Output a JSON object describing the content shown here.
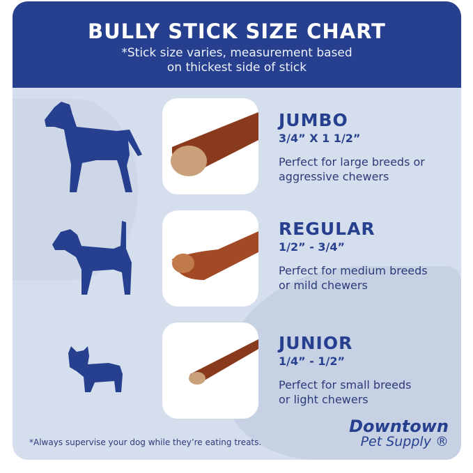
{
  "header": {
    "title": "BULLY STICK SIZE CHART",
    "subtitle_line1": "*Stick size varies, measurement based",
    "subtitle_line2": "on thickest side of stick"
  },
  "sizes": [
    {
      "name": "JUMBO",
      "dimension": "3/4” X 1 1/2”",
      "desc_line1": "Perfect for large breeds or",
      "desc_line2": "aggressive chewers",
      "dog_icon": "large-dog-silhouette"
    },
    {
      "name": "REGULAR",
      "dimension": "1/2” - 3/4”",
      "desc_line1": "Perfect for medium breeds",
      "desc_line2": "or mild chewers",
      "dog_icon": "medium-dog-silhouette"
    },
    {
      "name": "JUNIOR",
      "dimension": "1/4” - 1/2”",
      "desc_line1": "Perfect for small breeds",
      "desc_line2": "or light chewers",
      "dog_icon": "small-dog-silhouette"
    }
  ],
  "footer": {
    "note": "*Always supervise your dog while they’re eating treats.",
    "logo_line1": "Downtown",
    "logo_line2": "Pet Supply ®"
  },
  "colors": {
    "navy": "#263f8e",
    "background": "#d5deec",
    "stick": "#8a3a1c"
  }
}
